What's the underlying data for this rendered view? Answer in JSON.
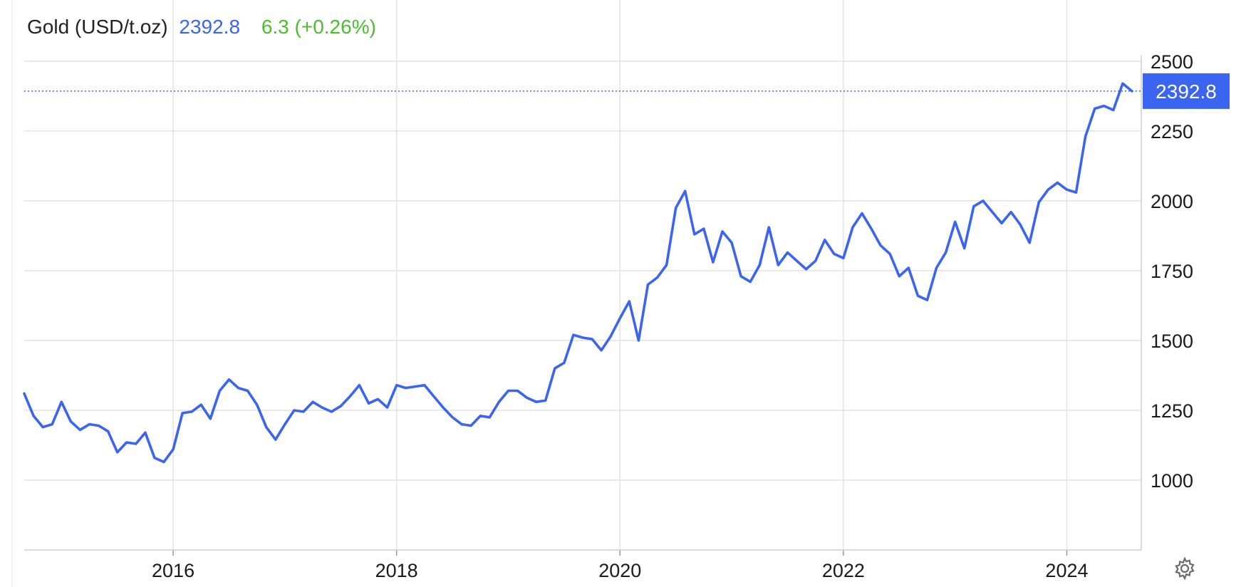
{
  "header": {
    "instrument": "Gold (USD/t.oz)",
    "price": "2392.8",
    "change": "6.3 (+0.26%)"
  },
  "colors": {
    "line": "#3b64f0",
    "change_positive": "#4bbf2b",
    "grid": "#e3e3e3",
    "axis_text": "#1a1a1a"
  },
  "icons": {
    "settings": "gear-icon"
  },
  "chart_data": {
    "type": "line",
    "title": "Gold (USD/t.oz)",
    "xlabel": "",
    "ylabel": "",
    "x_ticks": [
      "2016",
      "2018",
      "2020",
      "2022",
      "2024"
    ],
    "y_ticks": [
      1000,
      1250,
      1500,
      1750,
      2000,
      2250,
      2500
    ],
    "xlim": [
      "2014-09",
      "2024-09"
    ],
    "ylim": [
      750,
      2520
    ],
    "grid": true,
    "last_value_label": "2392.8",
    "last_value": 2392.8,
    "series": [
      {
        "values": [
          [
            "2014-09",
            1310
          ],
          [
            "2014-10",
            1230
          ],
          [
            "2014-11",
            1190
          ],
          [
            "2014-12",
            1200
          ],
          [
            "2015-01",
            1280
          ],
          [
            "2015-02",
            1210
          ],
          [
            "2015-03",
            1180
          ],
          [
            "2015-04",
            1200
          ],
          [
            "2015-05",
            1195
          ],
          [
            "2015-06",
            1175
          ],
          [
            "2015-07",
            1100
          ],
          [
            "2015-08",
            1135
          ],
          [
            "2015-09",
            1130
          ],
          [
            "2015-10",
            1170
          ],
          [
            "2015-11",
            1080
          ],
          [
            "2015-12",
            1065
          ],
          [
            "2016-01",
            1110
          ],
          [
            "2016-02",
            1240
          ],
          [
            "2016-03",
            1245
          ],
          [
            "2016-04",
            1270
          ],
          [
            "2016-05",
            1220
          ],
          [
            "2016-06",
            1320
          ],
          [
            "2016-07",
            1360
          ],
          [
            "2016-08",
            1330
          ],
          [
            "2016-09",
            1320
          ],
          [
            "2016-10",
            1270
          ],
          [
            "2016-11",
            1190
          ],
          [
            "2016-12",
            1145
          ],
          [
            "2017-01",
            1200
          ],
          [
            "2017-02",
            1250
          ],
          [
            "2017-03",
            1245
          ],
          [
            "2017-04",
            1280
          ],
          [
            "2017-05",
            1260
          ],
          [
            "2017-06",
            1245
          ],
          [
            "2017-07",
            1265
          ],
          [
            "2017-08",
            1300
          ],
          [
            "2017-09",
            1340
          ],
          [
            "2017-10",
            1275
          ],
          [
            "2017-11",
            1290
          ],
          [
            "2017-12",
            1260
          ],
          [
            "2018-01",
            1340
          ],
          [
            "2018-02",
            1330
          ],
          [
            "2018-03",
            1335
          ],
          [
            "2018-04",
            1340
          ],
          [
            "2018-05",
            1300
          ],
          [
            "2018-06",
            1260
          ],
          [
            "2018-07",
            1225
          ],
          [
            "2018-08",
            1200
          ],
          [
            "2018-09",
            1195
          ],
          [
            "2018-10",
            1230
          ],
          [
            "2018-11",
            1225
          ],
          [
            "2018-12",
            1280
          ],
          [
            "2019-01",
            1320
          ],
          [
            "2019-02",
            1320
          ],
          [
            "2019-03",
            1295
          ],
          [
            "2019-04",
            1280
          ],
          [
            "2019-05",
            1285
          ],
          [
            "2019-06",
            1400
          ],
          [
            "2019-07",
            1420
          ],
          [
            "2019-08",
            1520
          ],
          [
            "2019-09",
            1510
          ],
          [
            "2019-10",
            1505
          ],
          [
            "2019-11",
            1465
          ],
          [
            "2019-12",
            1515
          ],
          [
            "2020-01",
            1580
          ],
          [
            "2020-02",
            1640
          ],
          [
            "2020-03",
            1500
          ],
          [
            "2020-04",
            1700
          ],
          [
            "2020-05",
            1725
          ],
          [
            "2020-06",
            1770
          ],
          [
            "2020-07",
            1975
          ],
          [
            "2020-08",
            2035
          ],
          [
            "2020-09",
            1880
          ],
          [
            "2020-10",
            1900
          ],
          [
            "2020-11",
            1780
          ],
          [
            "2020-12",
            1890
          ],
          [
            "2021-01",
            1850
          ],
          [
            "2021-02",
            1730
          ],
          [
            "2021-03",
            1710
          ],
          [
            "2021-04",
            1770
          ],
          [
            "2021-05",
            1905
          ],
          [
            "2021-06",
            1770
          ],
          [
            "2021-07",
            1815
          ],
          [
            "2021-08",
            1785
          ],
          [
            "2021-09",
            1755
          ],
          [
            "2021-10",
            1785
          ],
          [
            "2021-11",
            1860
          ],
          [
            "2021-12",
            1810
          ],
          [
            "2022-01",
            1795
          ],
          [
            "2022-02",
            1905
          ],
          [
            "2022-03",
            1955
          ],
          [
            "2022-04",
            1900
          ],
          [
            "2022-05",
            1840
          ],
          [
            "2022-06",
            1810
          ],
          [
            "2022-07",
            1730
          ],
          [
            "2022-08",
            1760
          ],
          [
            "2022-09",
            1660
          ],
          [
            "2022-10",
            1645
          ],
          [
            "2022-11",
            1760
          ],
          [
            "2022-12",
            1815
          ],
          [
            "2023-01",
            1925
          ],
          [
            "2023-02",
            1830
          ],
          [
            "2023-03",
            1980
          ],
          [
            "2023-04",
            2000
          ],
          [
            "2023-05",
            1960
          ],
          [
            "2023-06",
            1920
          ],
          [
            "2023-07",
            1960
          ],
          [
            "2023-08",
            1915
          ],
          [
            "2023-09",
            1850
          ],
          [
            "2023-10",
            1995
          ],
          [
            "2023-11",
            2040
          ],
          [
            "2023-12",
            2065
          ],
          [
            "2024-01",
            2040
          ],
          [
            "2024-02",
            2030
          ],
          [
            "2024-03",
            2230
          ],
          [
            "2024-04",
            2330
          ],
          [
            "2024-05",
            2340
          ],
          [
            "2024-06",
            2325
          ],
          [
            "2024-07",
            2420
          ],
          [
            "2024-08",
            2392.8
          ]
        ]
      }
    ]
  }
}
